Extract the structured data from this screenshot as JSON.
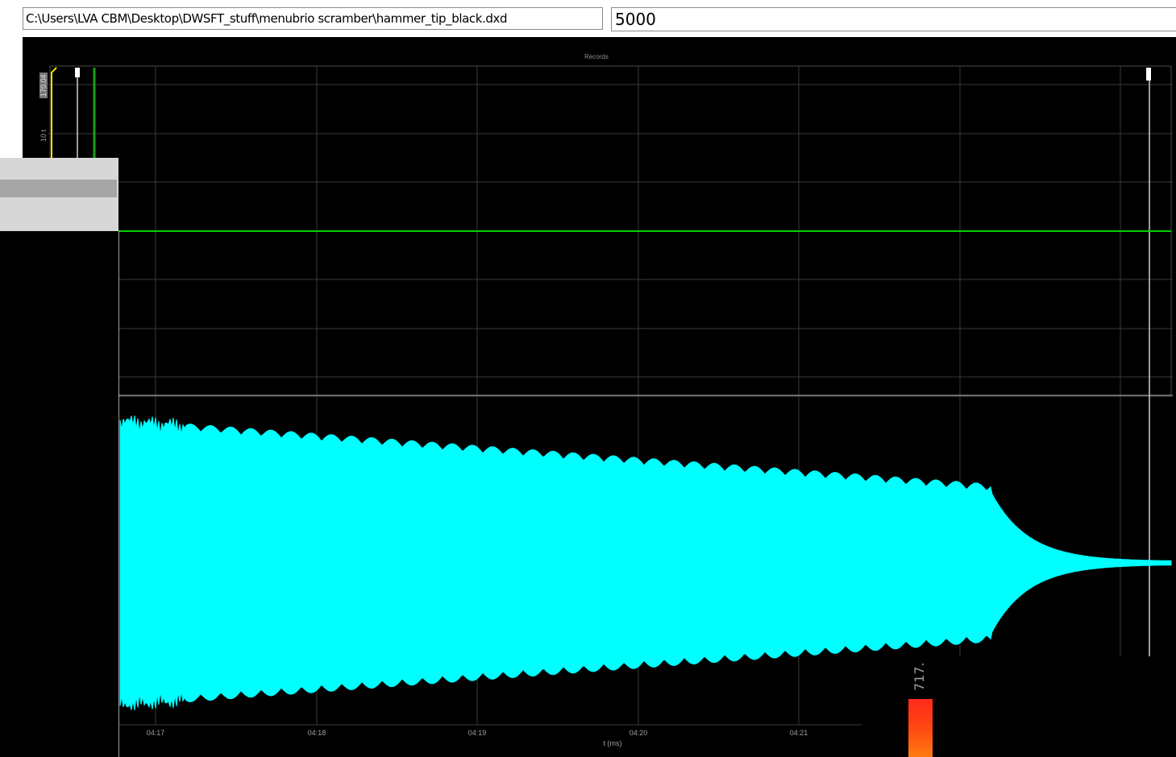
{
  "toolbar": {
    "file_path": "C:\\Users\\LVA CBM\\Desktop\\DWSFT_stuff\\menubrio scramber\\hammer_tip_black.dxd",
    "value_field": "5000"
  },
  "plot": {
    "title": "Records",
    "ytick_top": "170.04",
    "ytick_mid": "10 t"
  },
  "x_axis": {
    "ticks": [
      "04:17",
      "04:18",
      "04:19",
      "04:20",
      "04:21"
    ],
    "label": "t (ms)"
  },
  "legend": {
    "value": "717."
  },
  "colors": {
    "background": "#000000",
    "grid": "#3a3a3a",
    "signal_green": "#00d000",
    "signal_cyan": "#00ffff",
    "cursor_yellow": "#ffe000"
  }
}
